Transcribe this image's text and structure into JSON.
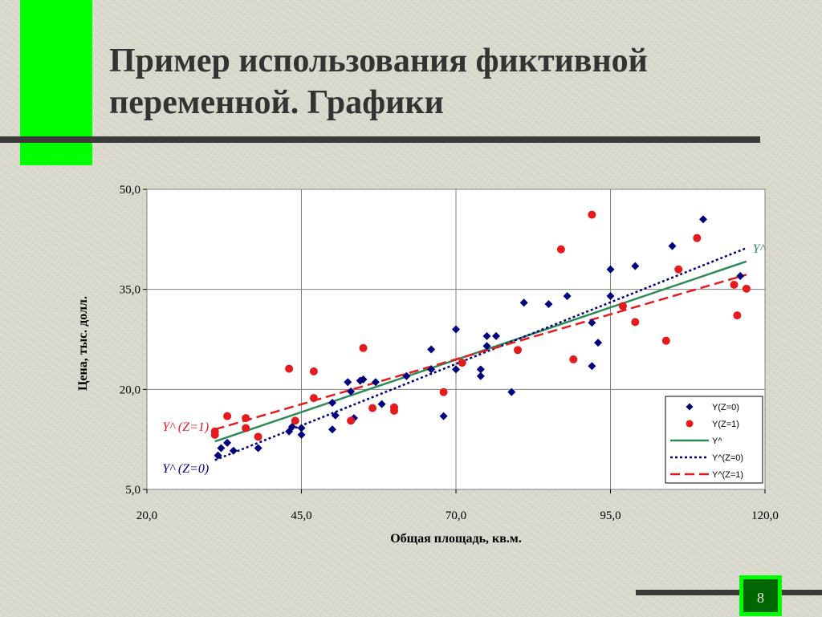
{
  "slide": {
    "title": "Пример использования фиктивной переменной. Графики",
    "page_number": "8",
    "accent_color": "#00ff00",
    "page_box_color": "#006600"
  },
  "chart_data": {
    "type": "scatter",
    "xlabel": "Общая площадь, кв.м.",
    "ylabel": "Цена, тыс. долл.",
    "xlim": [
      20,
      120
    ],
    "ylim": [
      5,
      50
    ],
    "x_ticks": [
      20,
      45,
      70,
      95,
      120
    ],
    "y_ticks": [
      5,
      20,
      35,
      50
    ],
    "x_tick_labels": [
      "20,0",
      "45,0",
      "70,0",
      "95,0",
      "120,0"
    ],
    "y_tick_labels": [
      "5,0",
      "20,0",
      "35,0",
      "50,0"
    ],
    "grid": true,
    "legend_position": "bottom-right",
    "series": [
      {
        "name": "Y(Z=0)",
        "kind": "points",
        "marker": "diamond",
        "color": "#00007f",
        "points": [
          [
            31.5,
            10.1
          ],
          [
            32,
            11.2
          ],
          [
            33,
            12
          ],
          [
            34,
            10.8
          ],
          [
            38,
            11.2
          ],
          [
            43,
            13.7
          ],
          [
            43.5,
            14.4
          ],
          [
            45,
            14.2
          ],
          [
            45,
            13.2
          ],
          [
            50,
            18
          ],
          [
            50,
            14
          ],
          [
            50.5,
            16.1
          ],
          [
            52.5,
            21.1
          ],
          [
            53,
            19.7
          ],
          [
            53.5,
            15.7
          ],
          [
            54.5,
            21.3
          ],
          [
            55,
            21.5
          ],
          [
            57,
            21.1
          ],
          [
            58,
            17.8
          ],
          [
            62,
            22
          ],
          [
            66,
            23
          ],
          [
            66,
            26
          ],
          [
            68,
            16
          ],
          [
            70,
            29
          ],
          [
            70,
            23
          ],
          [
            74,
            22
          ],
          [
            74,
            23
          ],
          [
            75,
            26.5
          ],
          [
            75,
            28
          ],
          [
            76.5,
            28
          ],
          [
            79,
            19.6
          ],
          [
            81,
            33
          ],
          [
            85,
            32.8
          ],
          [
            88,
            34
          ],
          [
            92,
            23.5
          ],
          [
            92,
            30
          ],
          [
            93,
            27
          ],
          [
            95,
            38
          ],
          [
            95,
            34
          ],
          [
            99,
            38.5
          ],
          [
            105,
            41.5
          ],
          [
            110,
            45.5
          ],
          [
            116,
            37
          ]
        ]
      },
      {
        "name": "Y(Z=1)",
        "kind": "points",
        "marker": "circle",
        "color": "#e41a1c",
        "points": [
          [
            31,
            13.2
          ],
          [
            31,
            13.7
          ],
          [
            33,
            16
          ],
          [
            36,
            15.7
          ],
          [
            36,
            14.2
          ],
          [
            38,
            12.9
          ],
          [
            43,
            23.1
          ],
          [
            44,
            15.3
          ],
          [
            47,
            22.7
          ],
          [
            47,
            18.7
          ],
          [
            53,
            15.3
          ],
          [
            55,
            26.2
          ],
          [
            56.5,
            17.2
          ],
          [
            60,
            16.8
          ],
          [
            60,
            17.3
          ],
          [
            68,
            19.6
          ],
          [
            71,
            24
          ],
          [
            80,
            25.9
          ],
          [
            87,
            41
          ],
          [
            89,
            24.5
          ],
          [
            92,
            46.2
          ],
          [
            97,
            32.5
          ],
          [
            99,
            30.1
          ],
          [
            104,
            27.3
          ],
          [
            106,
            38
          ],
          [
            109,
            42.7
          ],
          [
            115,
            35.7
          ],
          [
            115.5,
            31.1
          ],
          [
            117,
            35.1
          ]
        ]
      },
      {
        "name": "Y^",
        "kind": "line",
        "style": "solid",
        "color": "#2e8b57",
        "from": [
          31,
          12.2
        ],
        "to": [
          117,
          39.2
        ]
      },
      {
        "name": "Y^(Z=0)",
        "kind": "line",
        "style": "dotted",
        "color": "#00007f",
        "from": [
          31,
          9.4
        ],
        "to": [
          117,
          41.2
        ]
      },
      {
        "name": "Y^(Z=1)",
        "kind": "line",
        "style": "dashed",
        "color": "#e41a1c",
        "from": [
          31,
          14
        ],
        "to": [
          117,
          37.2
        ]
      }
    ],
    "annotations": [
      {
        "text": "Y^",
        "color": "#2e8b57",
        "x": 118,
        "y": 40.5
      },
      {
        "text": "Y^ (Z=1)",
        "color": "#e41a1c",
        "x": 22.5,
        "y": 13.8
      },
      {
        "text": "Y^ (Z=0)",
        "color": "#00007f",
        "x": 22.5,
        "y": 7.5
      }
    ]
  }
}
